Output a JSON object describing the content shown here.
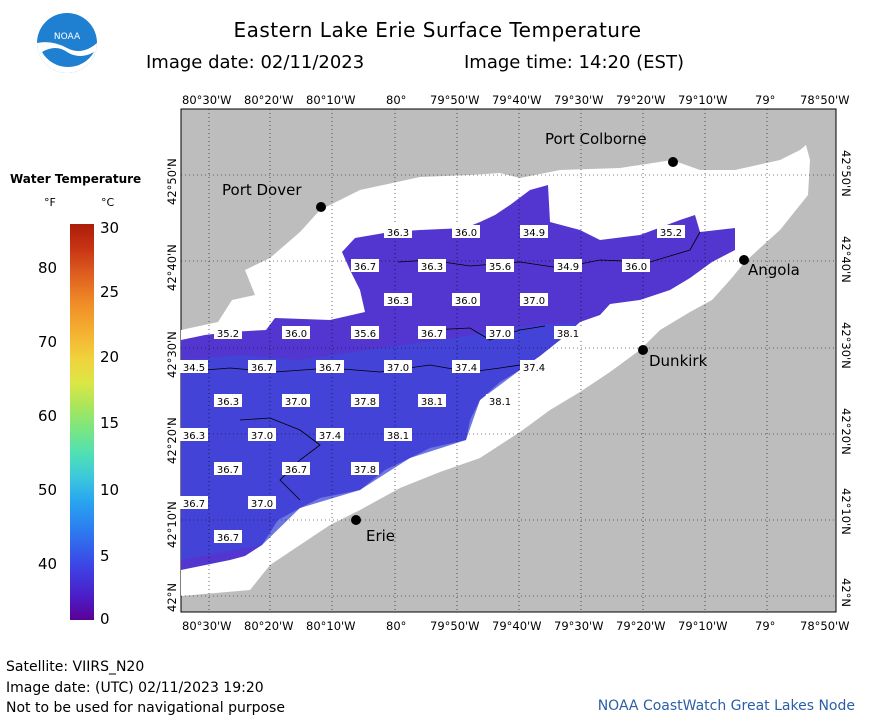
{
  "header": {
    "title": "Eastern Lake Erie Surface Temperature",
    "image_date": "Image date: 02/11/2023",
    "image_time": "Image time: 14:20 (EST)",
    "logo_text": "NOAA"
  },
  "legend": {
    "title": "Water Temperature",
    "unit_f": "°F",
    "unit_c": "°C",
    "f_ticks": [
      "80",
      "70",
      "60",
      "50",
      "40"
    ],
    "c_ticks": [
      "30",
      "25",
      "20",
      "15",
      "10",
      "5",
      "0"
    ]
  },
  "axes": {
    "top_lon": [
      "80°30'W",
      "80°20'W",
      "80°10'W",
      "80°",
      "79°50'W",
      "79°40'W",
      "79°30'W",
      "79°20'W",
      "79°10'W",
      "79°",
      "78°50'W"
    ],
    "bottom_lon": [
      "80°30'W",
      "80°20'W",
      "80°10'W",
      "80°",
      "79°50'W",
      "79°40'W",
      "79°30'W",
      "79°20'W",
      "79°10'W",
      "79°",
      "78°50'W"
    ],
    "left_lat": [
      "42°50'N",
      "42°40'N",
      "42°30'N",
      "42°20'N",
      "42°10'N",
      "42°N"
    ],
    "right_lat": [
      "42°50'N",
      "42°40'N",
      "42°30'N",
      "42°20'N",
      "42°10'N",
      "42°N"
    ]
  },
  "places": [
    {
      "name": "Port Colborne"
    },
    {
      "name": "Port Dover"
    },
    {
      "name": "Angola"
    },
    {
      "name": "Dunkirk"
    },
    {
      "name": "Erie"
    }
  ],
  "temps": [
    "36.3",
    "36.0",
    "34.9",
    "35.2",
    "36.7",
    "36.3",
    "35.6",
    "34.9",
    "36.0",
    "36.3",
    "36.0",
    "37.0",
    "35.2",
    "36.0",
    "35.6",
    "36.7",
    "37.0",
    "38.1",
    "34.5",
    "36.7",
    "36.7",
    "37.0",
    "37.4",
    "37.4",
    "36.3",
    "37.0",
    "37.8",
    "38.1",
    "38.1",
    "36.3",
    "37.0",
    "37.4",
    "38.1",
    "36.7",
    "36.7",
    "37.8",
    "36.7",
    "37.0",
    "36.7"
  ],
  "colors": {
    "land": "#bdbdbd",
    "no_data": "#ffffff",
    "water_cold": "#5a32c8",
    "water_warm": "#3c46dc"
  },
  "footer": {
    "satellite": "Satellite: VIIRS_N20",
    "utc_date": "Image date: (UTC) 02/11/2023  19:20",
    "note": "Not to be used for navigational purpose",
    "node": "NOAA CoastWatch Great Lakes Node"
  }
}
